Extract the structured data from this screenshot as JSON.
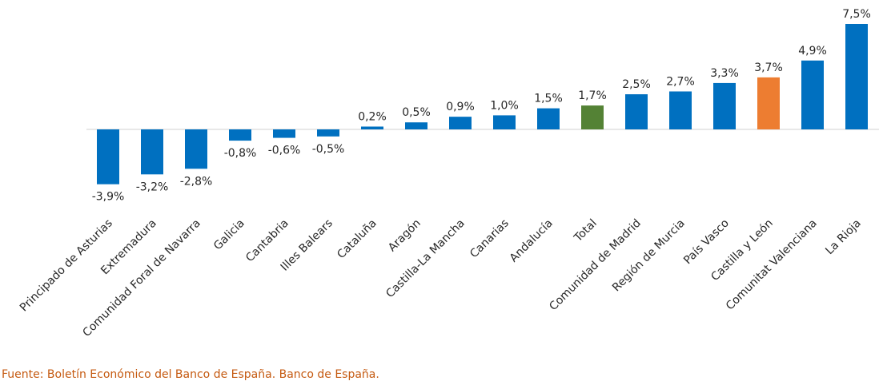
{
  "chart_data": {
    "type": "bar",
    "categories": [
      "Principado de Asturias",
      "Extremadura",
      "Comunidad Foral de Navarra",
      "Galicia",
      "Cantabria",
      "Illes Balears",
      "Cataluña",
      "Aragón",
      "Castilla-La Mancha",
      "Canarias",
      "Andalucía",
      "Total",
      "Comunidad de Madrid",
      "Región de Murcia",
      "País Vasco",
      "Castilla y León",
      "Comunitat Valenciana",
      "La Rioja"
    ],
    "values": [
      -3.9,
      -3.2,
      -2.8,
      -0.8,
      -0.6,
      -0.5,
      0.2,
      0.5,
      0.9,
      1.0,
      1.5,
      1.7,
      2.5,
      2.7,
      3.3,
      3.7,
      4.9,
      7.5
    ],
    "value_labels": [
      "-3,9%",
      "-3,2%",
      "-2,8%",
      "-0,8%",
      "-0,6%",
      "-0,5%",
      "0,2%",
      "0,5%",
      "0,9%",
      "1,0%",
      "1,5%",
      "1,7%",
      "2,5%",
      "2,7%",
      "3,3%",
      "3,7%",
      "4,9%",
      "7,5%"
    ],
    "colors": {
      "default": "#0070c0",
      "Total": "#548235",
      "Castilla y León": "#ed7d31",
      "axis": "#d9d9d9"
    },
    "ylim": [
      -3.9,
      7.5
    ],
    "grid": false,
    "legend": "none"
  },
  "source": "Fuente: Boletín Económico del Banco de España. Banco de España."
}
